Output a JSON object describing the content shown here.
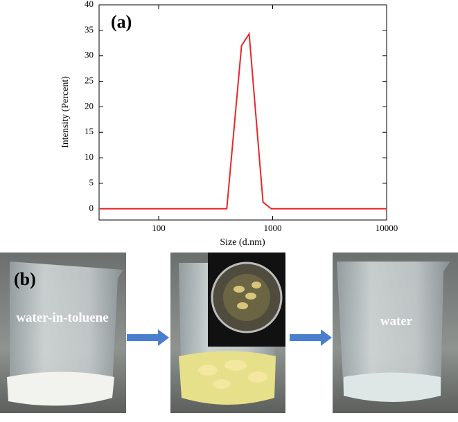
{
  "chart_data": {
    "type": "line",
    "panel_label": "(a)",
    "xlabel": "Size (d.nm)",
    "ylabel": "Intensity (Percent)",
    "x": [
      30,
      396,
      533,
      622,
      823,
      972,
      10000
    ],
    "values": [
      0,
      0,
      32,
      34.3,
      1.3,
      0,
      0
    ],
    "color": "#e8262b",
    "xscale": "log",
    "xlim": [
      30,
      10000
    ],
    "xticks": [
      100,
      1000,
      10000
    ],
    "ylim": [
      -2.2,
      40
    ],
    "yticks": [
      0,
      5,
      10,
      15,
      20,
      25,
      30,
      35,
      40
    ],
    "grid": false
  },
  "panel_b": {
    "label": "(b)",
    "captions": [
      "water-in-toluene",
      "water"
    ]
  }
}
